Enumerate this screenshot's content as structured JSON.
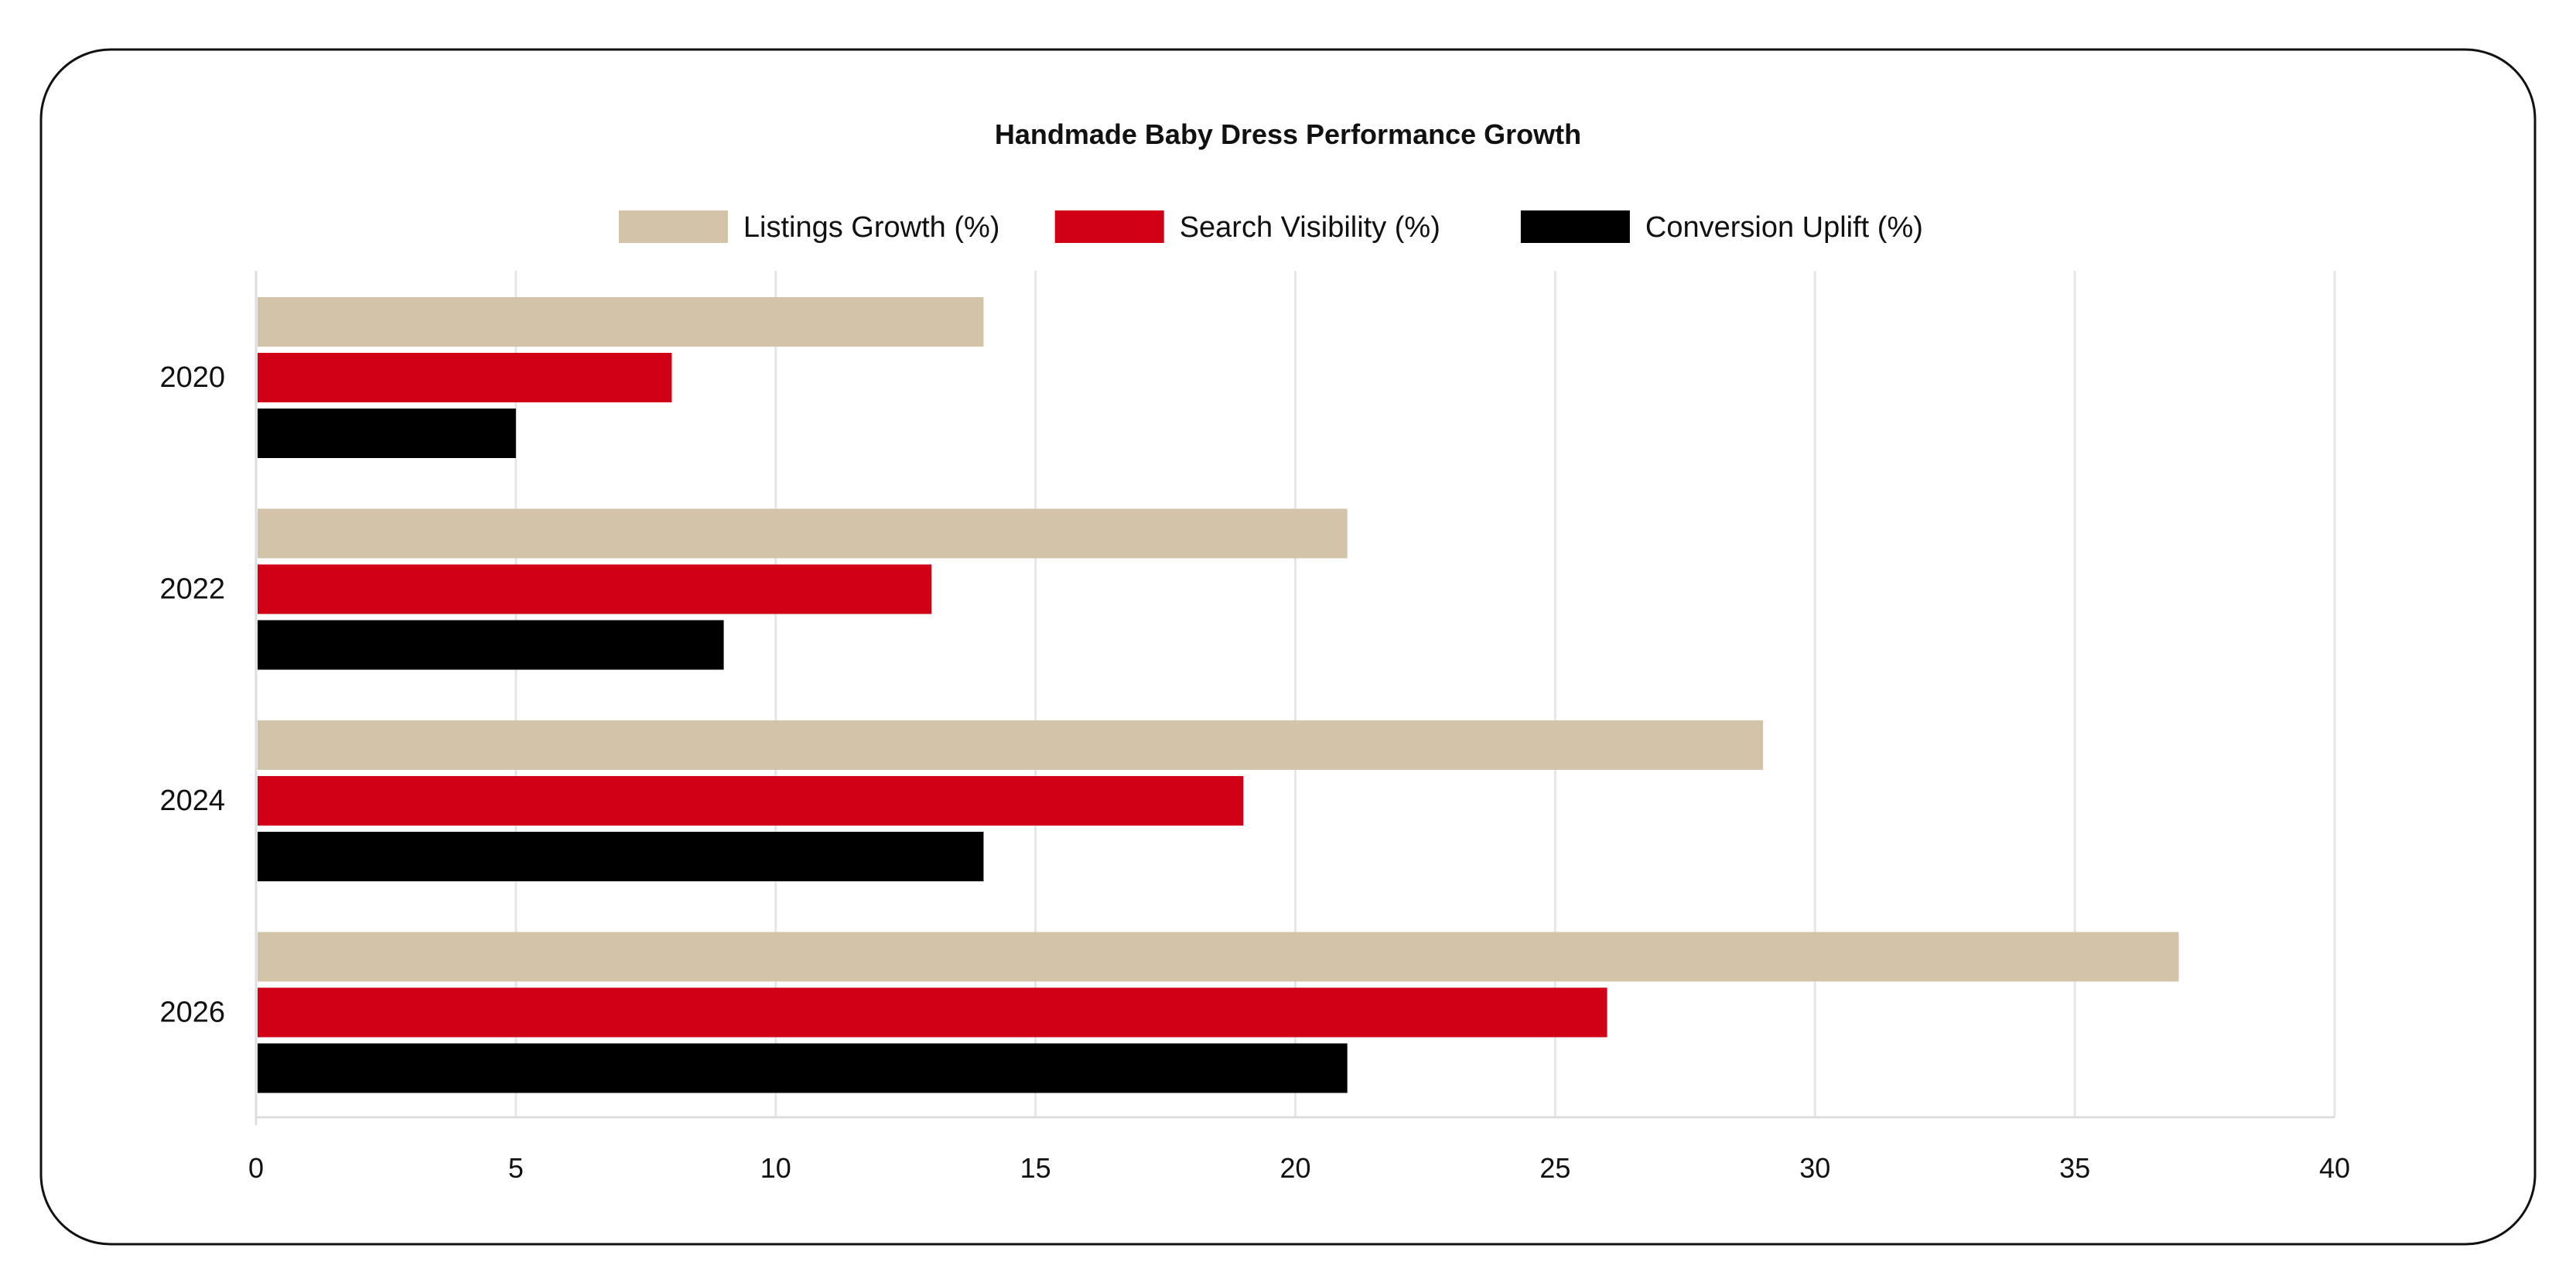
{
  "chart_data": {
    "type": "bar",
    "orientation": "horizontal",
    "title": "Handmade Baby Dress Performance Growth",
    "categories": [
      "2020",
      "2022",
      "2024",
      "2026"
    ],
    "series": [
      {
        "name": "Listings Growth (%)",
        "color": "#d3c3a9",
        "values": [
          14,
          21,
          29,
          37
        ]
      },
      {
        "name": "Search Visibility (%)",
        "color": "#d20016",
        "values": [
          8,
          13,
          19,
          26
        ]
      },
      {
        "name": "Conversion Uplift (%)",
        "color": "#000000",
        "values": [
          5,
          9,
          14,
          21
        ]
      }
    ],
    "xlim": [
      0,
      40
    ],
    "xticks": [
      0,
      5,
      10,
      15,
      20,
      25,
      30,
      35,
      40
    ],
    "grid": "vertical",
    "legend": "top-center"
  }
}
